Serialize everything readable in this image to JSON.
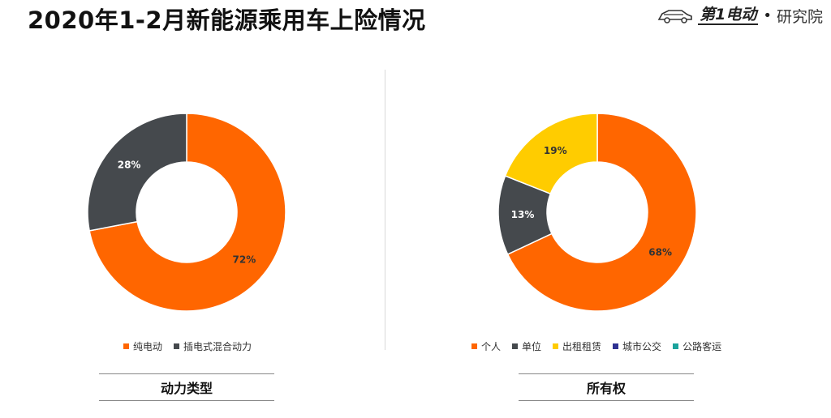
{
  "header": {
    "title": "2020年1-2月新能源乘用车上险情况",
    "brand_name": "第1电动",
    "brand_separator": "•",
    "brand_suffix": "研究院"
  },
  "colors": {
    "orange": "#FF6600",
    "dark_gray": "#45494D",
    "yellow": "#FFCC00",
    "navy": "#2E3192",
    "teal": "#1BA39C"
  },
  "chart_data": [
    {
      "type": "pie",
      "donut": true,
      "caption": "动力类型",
      "categories": [
        "纯电动",
        "插电式混合动力"
      ],
      "values": [
        72,
        28
      ],
      "labels": [
        "72%",
        "28%"
      ],
      "colors": [
        "#FF6600",
        "#45494D"
      ],
      "legend_position": "bottom"
    },
    {
      "type": "pie",
      "donut": true,
      "caption": "所有权",
      "categories": [
        "个人",
        "单位",
        "出租租赁",
        "城市公交",
        "公路客运"
      ],
      "values": [
        68,
        13,
        19,
        0,
        0
      ],
      "labels": [
        "68%",
        "13%",
        "19%",
        "",
        ""
      ],
      "colors": [
        "#FF6600",
        "#45494D",
        "#FFCC00",
        "#2E3192",
        "#1BA39C"
      ],
      "legend_position": "bottom"
    }
  ]
}
